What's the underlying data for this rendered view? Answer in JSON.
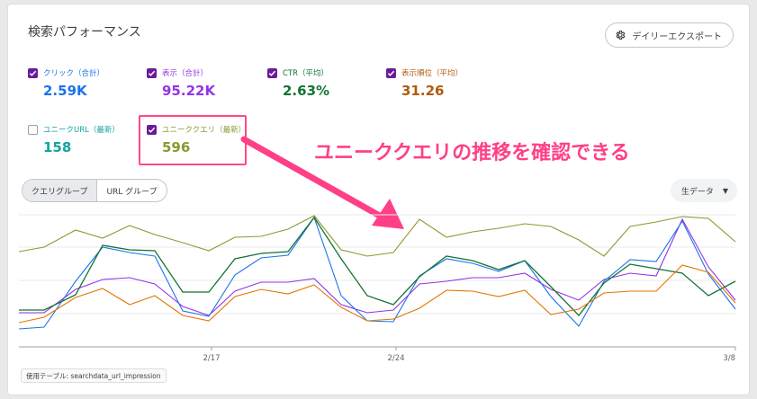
{
  "header": {
    "title": "検索パフォーマンス",
    "export_label": "デイリーエクスポート",
    "export_icon": "gear-icon"
  },
  "metrics": [
    {
      "label": "クリック（合計）",
      "value": "2.59K",
      "checked": true,
      "color": "#1a73e8"
    },
    {
      "label": "表示（合計）",
      "value": "95.22K",
      "checked": true,
      "color": "#9334e6"
    },
    {
      "label": "CTR（平均）",
      "value": "2.63%",
      "checked": true,
      "color": "#137333"
    },
    {
      "label": "表示順位（平均）",
      "value": "31.26",
      "checked": true,
      "color": "#b05a0a"
    },
    {
      "label": "ユニークURL（最新）",
      "value": "158",
      "checked": false,
      "color": "#12a4a0"
    },
    {
      "label": "ユニーククエリ（最新）",
      "value": "596",
      "checked": true,
      "color": "#8a9a2f"
    }
  ],
  "annotation": "ユニーククエリの推移を確認できる",
  "tabs": {
    "query": "クエリグループ",
    "url": "URL グループ"
  },
  "dropdown": {
    "value": "生データ"
  },
  "x_ticks": [
    "2/17",
    "2/24",
    "3/8"
  ],
  "source_label": "使用テーブル: searchdata_url_impression",
  "colors": {
    "accent": "#6a1b9a",
    "annotation": "#ff3f87"
  }
}
